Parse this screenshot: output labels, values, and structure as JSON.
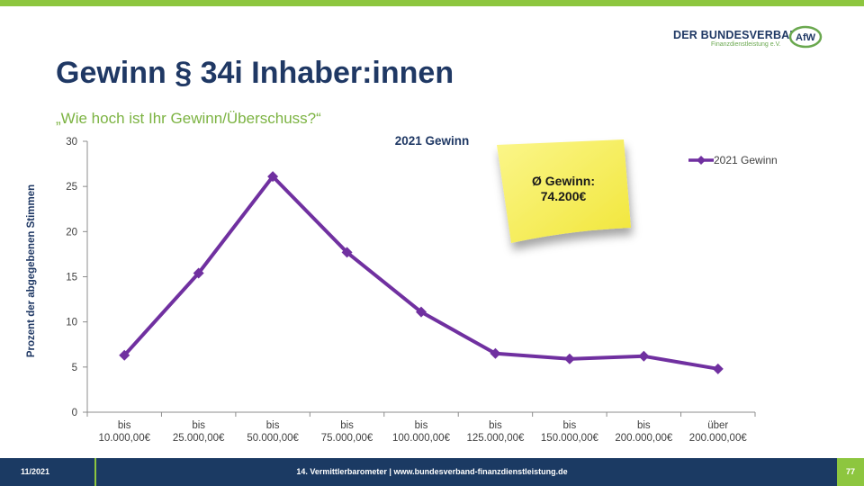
{
  "header": {
    "logo_main": "DER BUNDESVERBAND",
    "logo_sub": "Finanzdienstleistung e.V.",
    "logo_badge": "AfW"
  },
  "title": "Gewinn § 34i Inhaber:innen",
  "subtitle": "„Wie hoch ist Ihr Gewinn/Überschuss?“",
  "note": {
    "line1": "Ø Gewinn:",
    "line2": "74.200€",
    "color": "#f7f063"
  },
  "chart_data": {
    "type": "line",
    "title": "2021 Gewinn",
    "ylabel": "Prozent der abgegebenen Stimmen",
    "xlabel": "",
    "ylim": [
      0,
      30
    ],
    "yticks": [
      0,
      5,
      10,
      15,
      20,
      25,
      30
    ],
    "grid": false,
    "legend_position": "top-right",
    "categories": [
      [
        "bis",
        "10.000,00€"
      ],
      [
        "bis",
        "25.000,00€"
      ],
      [
        "bis",
        "50.000,00€"
      ],
      [
        "bis",
        "75.000,00€"
      ],
      [
        "bis",
        "100.000,00€"
      ],
      [
        "bis",
        "125.000,00€"
      ],
      [
        "bis",
        "150.000,00€"
      ],
      [
        "bis",
        "200.000,00€"
      ],
      [
        "über",
        "200.000,00€"
      ]
    ],
    "series": [
      {
        "name": "2021 Gewinn",
        "color": "#7030a0",
        "values": [
          6.3,
          15.4,
          26.1,
          17.7,
          11.1,
          6.5,
          5.9,
          6.2,
          4.8
        ]
      }
    ]
  },
  "footer": {
    "date": "11/2021",
    "center": "14. Vermittlerbarometer | www.bundesverband-finanzdienstleistung.de",
    "page": "77"
  }
}
